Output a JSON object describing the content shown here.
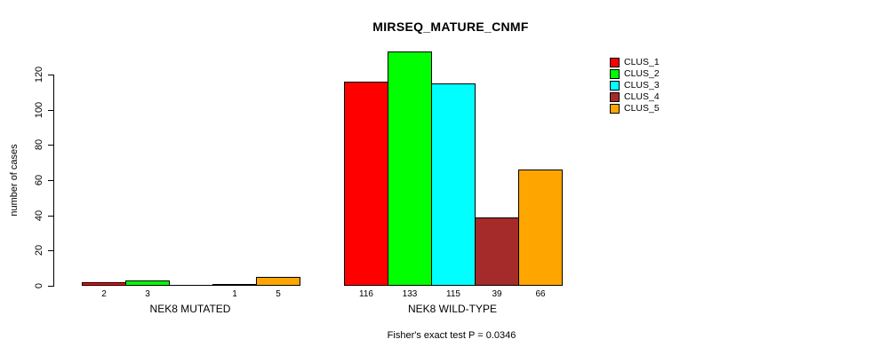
{
  "chart_data": {
    "type": "bar",
    "title": "MIRSEQ_MATURE_CNMF",
    "ylabel": "number of cases",
    "ylim": [
      0,
      120
    ],
    "yticks": [
      0,
      20,
      40,
      60,
      80,
      100,
      120
    ],
    "grid": false,
    "legend_position": "right",
    "groups": [
      {
        "label": "NEK8 MUTATED",
        "values": [
          2,
          3,
          0,
          1,
          5
        ],
        "value_labels": [
          "2",
          "3",
          "",
          "1",
          "5"
        ]
      },
      {
        "label": "NEK8 WILD-TYPE",
        "values": [
          116,
          133,
          115,
          39,
          66
        ],
        "value_labels": [
          "116",
          "133",
          "115",
          "39",
          "66"
        ]
      }
    ],
    "legend": [
      {
        "label": "CLUS_1",
        "color": "#FF0000"
      },
      {
        "label": "CLUS_2",
        "color": "#00FF00"
      },
      {
        "label": "CLUS_3",
        "color": "#00FFFF"
      },
      {
        "label": "CLUS_4",
        "color": "#A52A2A"
      },
      {
        "label": "CLUS_5",
        "color": "#FFA500"
      }
    ],
    "footnote": "Fisher's exact test P = 0.0346"
  }
}
